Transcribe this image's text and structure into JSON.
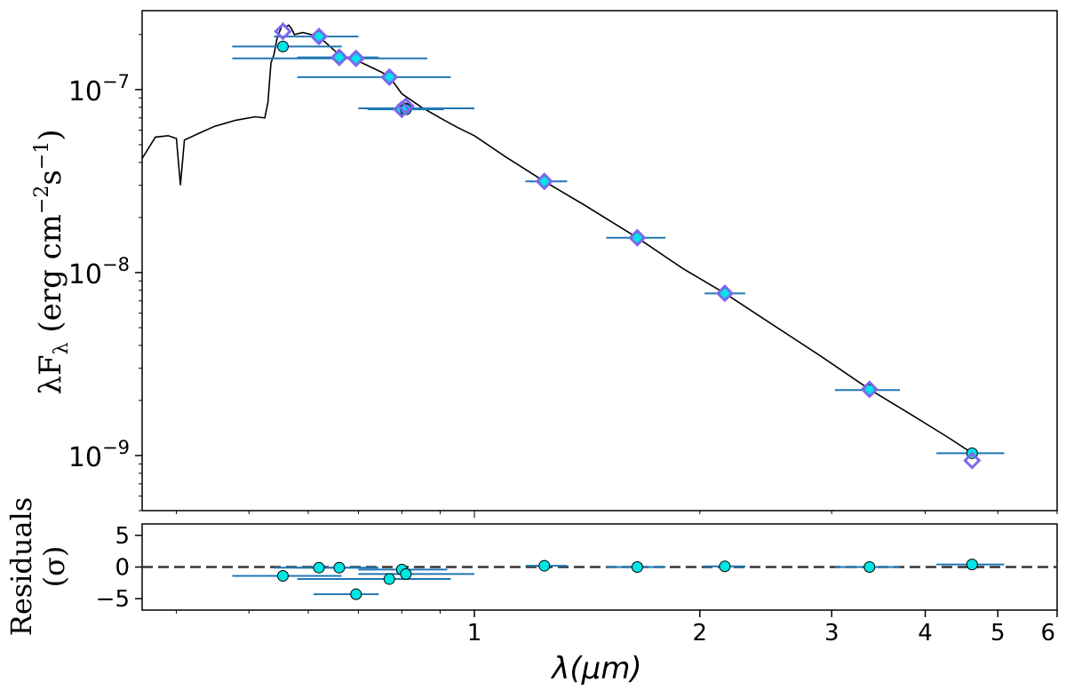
{
  "chart_data": [
    {
      "id": "sed",
      "type": "scatter",
      "xscale": "log",
      "yscale": "log",
      "xlim": [
        0.36,
        6.0
      ],
      "ylim": [
        5e-10,
        2.7e-07
      ],
      "ylabel_main": "λF",
      "ylabel_sub": "λ",
      "ylabel_units_prefix": " (erg cm",
      "ylabel_exp1": "−2",
      "ylabel_mid": "s",
      "ylabel_exp2": "−1",
      "ylabel_close": ")",
      "yticks": [
        {
          "value": 1e-07,
          "base": "10",
          "exp": "−7"
        },
        {
          "value": 1e-08,
          "base": "10",
          "exp": "−8"
        },
        {
          "value": 1e-09,
          "base": "10",
          "exp": "−9"
        }
      ],
      "colors": {
        "model": "#000000",
        "errorbar": "#1f77b4",
        "observed": "#00e5e5",
        "synthetic": "#7b68ee"
      },
      "series": [
        {
          "name": "observed",
          "points": [
            {
              "x": 0.555,
              "y": 1.72e-07,
              "xmin": 0.475,
              "xmax": 0.665
            },
            {
              "x": 0.62,
              "y": 1.95e-07,
              "xmin": 0.54,
              "xmax": 0.7
            },
            {
              "x": 0.66,
              "y": 1.5e-07,
              "xmin": 0.58,
              "xmax": 0.745
            },
            {
              "x": 0.695,
              "y": 1.48e-07,
              "xmin": 0.475,
              "xmax": 0.865
            },
            {
              "x": 0.77,
              "y": 1.17e-07,
              "xmin": 0.58,
              "xmax": 0.93
            },
            {
              "x": 0.8,
              "y": 7.9e-08,
              "xmin": 0.7,
              "xmax": 0.92
            },
            {
              "x": 0.81,
              "y": 7.9e-08,
              "xmin": 0.7,
              "xmax": 1.0
            },
            {
              "x": 0.81,
              "y": 7.8e-08,
              "xmin": 0.72,
              "xmax": 0.91
            },
            {
              "x": 1.24,
              "y": 3.15e-08,
              "xmin": 1.17,
              "xmax": 1.33
            },
            {
              "x": 1.65,
              "y": 1.55e-08,
              "xmin": 1.5,
              "xmax": 1.8
            },
            {
              "x": 2.16,
              "y": 7.7e-09,
              "xmin": 2.03,
              "xmax": 2.3
            },
            {
              "x": 3.37,
              "y": 2.28e-09,
              "xmin": 3.03,
              "xmax": 3.7
            },
            {
              "x": 4.62,
              "y": 1.03e-09,
              "xmin": 4.14,
              "xmax": 5.1
            }
          ]
        },
        {
          "name": "synthetic",
          "points": [
            {
              "x": 0.555,
              "y": 2.08e-07
            },
            {
              "x": 0.62,
              "y": 1.95e-07
            },
            {
              "x": 0.66,
              "y": 1.5e-07
            },
            {
              "x": 0.695,
              "y": 1.48e-07
            },
            {
              "x": 0.77,
              "y": 1.17e-07
            },
            {
              "x": 0.8,
              "y": 7.8e-08
            },
            {
              "x": 0.81,
              "y": 8.1e-08
            },
            {
              "x": 1.24,
              "y": 3.15e-08
            },
            {
              "x": 1.65,
              "y": 1.55e-08
            },
            {
              "x": 2.16,
              "y": 7.7e-09
            },
            {
              "x": 3.37,
              "y": 2.3e-09
            },
            {
              "x": 4.62,
              "y": 9.4e-10
            }
          ]
        },
        {
          "name": "model",
          "line": [
            [
              0.36,
              4.2e-08
            ],
            [
              0.375,
              5.5e-08
            ],
            [
              0.39,
              5.6e-08
            ],
            [
              0.4,
              5.4e-08
            ],
            [
              0.405,
              3e-08
            ],
            [
              0.41,
              5.3e-08
            ],
            [
              0.43,
              5.8e-08
            ],
            [
              0.45,
              6.3e-08
            ],
            [
              0.48,
              6.8e-08
            ],
            [
              0.51,
              7.1e-08
            ],
            [
              0.525,
              7e-08
            ],
            [
              0.53,
              8.5e-08
            ],
            [
              0.535,
              1.4e-07
            ],
            [
              0.54,
              1.55e-07
            ],
            [
              0.545,
              1.9e-07
            ],
            [
              0.55,
              2.1e-07
            ],
            [
              0.555,
              2.3e-07
            ],
            [
              0.56,
              2.2e-07
            ],
            [
              0.565,
              2.25e-07
            ],
            [
              0.57,
              2.15e-07
            ],
            [
              0.575,
              2e-07
            ],
            [
              0.59,
              2.05e-07
            ],
            [
              0.62,
              1.95e-07
            ],
            [
              0.66,
              1.55e-07
            ],
            [
              0.695,
              1.45e-07
            ],
            [
              0.75,
              1.25e-07
            ],
            [
              0.77,
              1.18e-07
            ],
            [
              0.8,
              9.5e-08
            ],
            [
              0.85,
              8e-08
            ],
            [
              0.9,
              7e-08
            ],
            [
              0.95,
              6.2e-08
            ],
            [
              1.0,
              5.6e-08
            ],
            [
              1.1,
              4.3e-08
            ],
            [
              1.24,
              3.15e-08
            ],
            [
              1.4,
              2.35e-08
            ],
            [
              1.65,
              1.55e-08
            ],
            [
              1.9,
              1.05e-08
            ],
            [
              2.16,
              7.7e-09
            ],
            [
              2.5,
              5.2e-09
            ],
            [
              2.9,
              3.5e-09
            ],
            [
              3.37,
              2.3e-09
            ],
            [
              3.9,
              1.6e-09
            ],
            [
              4.3,
              1.25e-09
            ],
            [
              4.62,
              1.03e-09
            ]
          ]
        }
      ]
    },
    {
      "id": "residuals",
      "type": "scatter",
      "xscale": "log",
      "xlim": [
        0.36,
        6.0
      ],
      "ylim": [
        -6.8,
        6.8
      ],
      "ylabel_line1": "Residuals",
      "ylabel_line2": "(σ)",
      "xlabel": "λ(μm)",
      "yticks": [
        {
          "value": 5,
          "label": "5"
        },
        {
          "value": 0,
          "label": "0"
        },
        {
          "value": -5,
          "label": "−5"
        }
      ],
      "xticks": [
        {
          "value": 1,
          "label": "1"
        },
        {
          "value": 2,
          "label": "2"
        },
        {
          "value": 3,
          "label": "3"
        },
        {
          "value": 4,
          "label": "4"
        },
        {
          "value": 5,
          "label": "5"
        },
        {
          "value": 6,
          "label": "6"
        }
      ],
      "zero_line": 0,
      "points": [
        {
          "x": 0.555,
          "y": -1.4,
          "xmin": 0.475,
          "xmax": 0.665
        },
        {
          "x": 0.62,
          "y": -0.1,
          "xmin": 0.54,
          "xmax": 0.7
        },
        {
          "x": 0.66,
          "y": -0.1,
          "xmin": 0.58,
          "xmax": 0.745
        },
        {
          "x": 0.695,
          "y": -4.3,
          "xmin": 0.61,
          "xmax": 0.745
        },
        {
          "x": 0.77,
          "y": -1.9,
          "xmin": 0.58,
          "xmax": 0.93
        },
        {
          "x": 0.8,
          "y": -0.4,
          "xmin": 0.7,
          "xmax": 0.92
        },
        {
          "x": 0.81,
          "y": -1.1,
          "xmin": 0.7,
          "xmax": 1.0
        },
        {
          "x": 1.24,
          "y": 0.2,
          "xmin": 1.17,
          "xmax": 1.33
        },
        {
          "x": 1.65,
          "y": 0.0,
          "xmin": 1.5,
          "xmax": 1.8
        },
        {
          "x": 2.16,
          "y": 0.1,
          "xmin": 2.03,
          "xmax": 2.3
        },
        {
          "x": 3.37,
          "y": 0.0,
          "xmin": 3.03,
          "xmax": 3.7
        },
        {
          "x": 4.62,
          "y": 0.4,
          "xmin": 4.14,
          "xmax": 5.1
        }
      ]
    }
  ]
}
